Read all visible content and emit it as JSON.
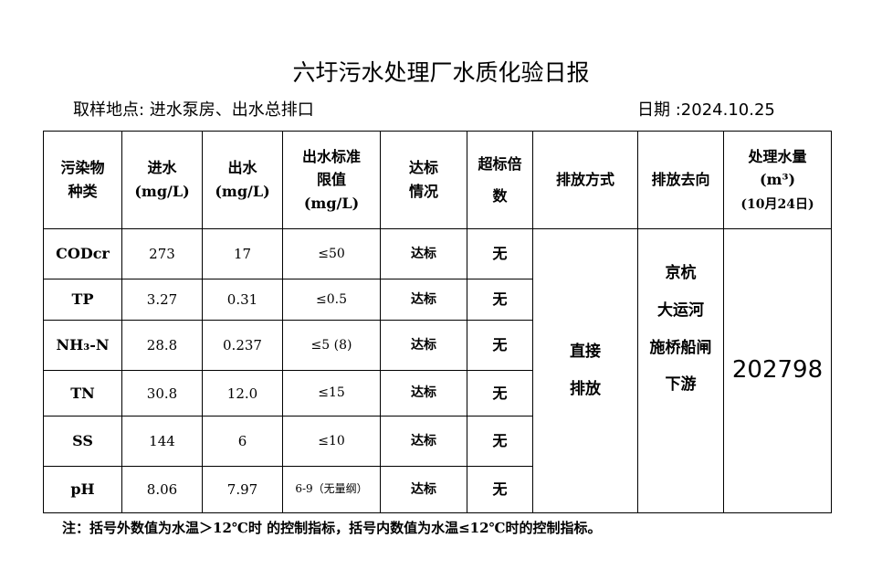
{
  "title": "六圩污水处理厂水质化验日报",
  "location": "取样地点: 进水泵房、出水总排口",
  "date": "日期 :2024.10.25",
  "headers": {
    "pollutant": [
      "污染物",
      "种类"
    ],
    "inflow": [
      "进水",
      "(mg/L)"
    ],
    "outflow": [
      "出水",
      "(mg/L)"
    ],
    "limit": [
      "出水标准",
      "限值",
      "(mg/L)"
    ],
    "status": [
      "达标",
      "情况"
    ],
    "exceed": [
      "超标倍",
      "数"
    ],
    "method": "排放方式",
    "destination": "排放去向",
    "volume": [
      "处理水量",
      "(m³)",
      "(10月24日)"
    ]
  },
  "rows": [
    {
      "name": "CODcr",
      "inflow": "273",
      "outflow": "17",
      "limit": "≤50",
      "status": "达标",
      "exceed": "无"
    },
    {
      "name": "TP",
      "inflow": "3.27",
      "outflow": "0.31",
      "limit": "≤0.5",
      "status": "达标",
      "exceed": "无"
    },
    {
      "name": "NH₃-N",
      "inflow": "28.8",
      "outflow": "0.237",
      "limit": "≤5 (8)",
      "status": "达标",
      "exceed": "无"
    },
    {
      "name": "TN",
      "inflow": "30.8",
      "outflow": "12.0",
      "limit": "≤15",
      "status": "达标",
      "exceed": "无"
    },
    {
      "name": "SS",
      "inflow": "144",
      "outflow": "6",
      "limit": "≤10",
      "status": "达标",
      "exceed": "无"
    },
    {
      "name": "pH",
      "inflow": "8.06",
      "outflow": "7.97",
      "limit": "6-9（无量纲）",
      "status": "达标",
      "exceed": "无"
    }
  ],
  "method": [
    "直接",
    "排放"
  ],
  "destination": [
    "京杭",
    "大运河",
    "施桥船闸",
    "下游"
  ],
  "volume": "202798",
  "note": "注：括号外数值为水温＞12℃时 的控制指标，括号内数值为水温≤12℃时的控制指标。"
}
